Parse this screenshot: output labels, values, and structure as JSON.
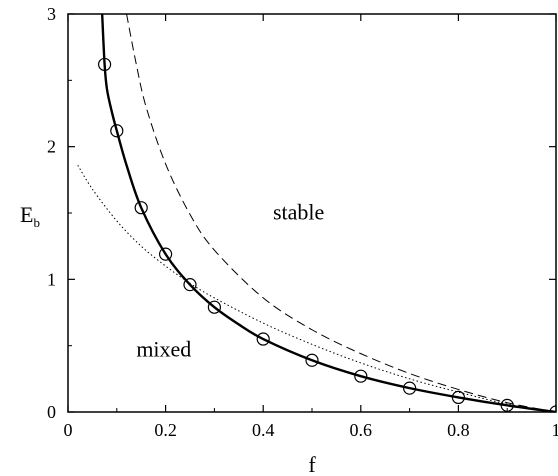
{
  "chart_data": {
    "type": "line",
    "title": "",
    "xlabel": "f",
    "ylabel": "E",
    "ylabel_subscript": "b",
    "xlim": [
      0,
      1
    ],
    "ylim": [
      0,
      3
    ],
    "x_ticks": [
      0,
      0.2,
      0.4,
      0.6,
      0.8,
      1
    ],
    "x_tick_labels": [
      "0",
      "0.2",
      "0.4",
      "0.6",
      "0.8",
      "1"
    ],
    "y_ticks": [
      0,
      1,
      2,
      3
    ],
    "y_tick_labels": [
      "0",
      "1",
      "2",
      "3"
    ],
    "grid": false,
    "annotations": [
      {
        "text": "stable",
        "x": 0.42,
        "y": 1.45
      },
      {
        "text": "mixed",
        "x": 0.14,
        "y": 0.42
      }
    ],
    "series": [
      {
        "style": "solid-thick",
        "x": [
          0.07,
          0.075,
          0.08,
          0.09,
          0.1,
          0.12,
          0.15,
          0.2,
          0.25,
          0.3,
          0.35,
          0.4,
          0.5,
          0.6,
          0.7,
          0.8,
          0.9,
          1.0
        ],
        "y": [
          3.0,
          2.62,
          2.43,
          2.26,
          2.12,
          1.86,
          1.54,
          1.19,
          0.96,
          0.79,
          0.66,
          0.55,
          0.39,
          0.27,
          0.18,
          0.11,
          0.05,
          0.0
        ]
      },
      {
        "style": "dashed",
        "x": [
          0.12,
          0.14,
          0.16,
          0.2,
          0.25,
          0.3,
          0.4,
          0.5,
          0.6,
          0.7,
          0.8,
          0.9,
          1.0
        ],
        "y": [
          3.0,
          2.62,
          2.3,
          1.87,
          1.49,
          1.22,
          0.86,
          0.62,
          0.44,
          0.29,
          0.17,
          0.07,
          0.0
        ]
      },
      {
        "style": "dotted",
        "x": [
          0.02,
          0.05,
          0.1,
          0.15,
          0.2,
          0.25,
          0.3,
          0.4,
          0.5,
          0.6,
          0.7,
          0.8,
          0.9,
          1.0
        ],
        "y": [
          1.86,
          1.68,
          1.44,
          1.25,
          1.1,
          0.97,
          0.86,
          0.67,
          0.51,
          0.37,
          0.25,
          0.15,
          0.06,
          0.0
        ]
      },
      {
        "style": "markers-circle",
        "x": [
          0.075,
          0.1,
          0.15,
          0.2,
          0.25,
          0.3,
          0.4,
          0.5,
          0.6,
          0.7,
          0.8,
          0.9,
          1.0
        ],
        "y": [
          2.62,
          2.12,
          1.54,
          1.19,
          0.96,
          0.79,
          0.55,
          0.39,
          0.27,
          0.18,
          0.11,
          0.05,
          0.0
        ]
      }
    ]
  }
}
